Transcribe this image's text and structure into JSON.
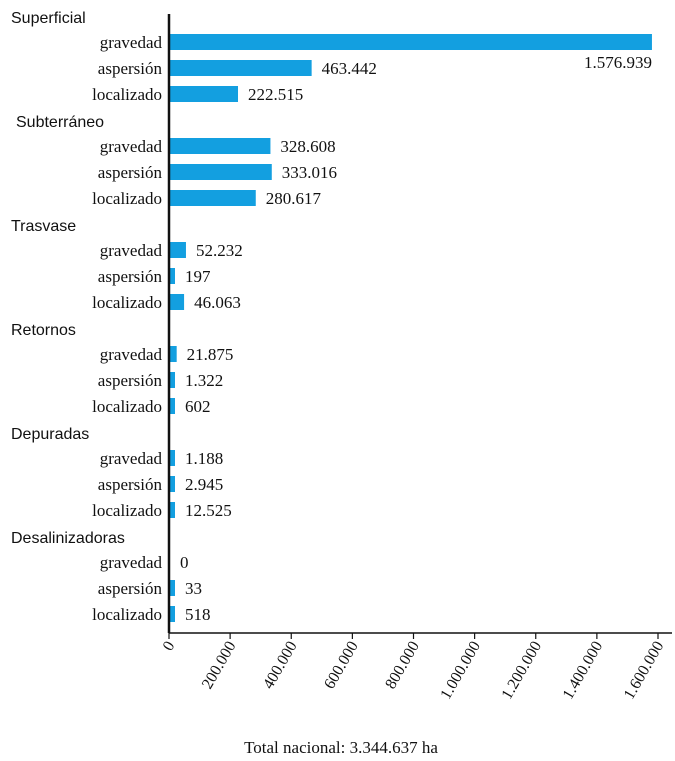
{
  "chart_data": {
    "type": "bar",
    "orientation": "horizontal",
    "bar_color": "#139fe0",
    "axis_color": "#111111",
    "groups": [
      {
        "name": "Superficial",
        "items": [
          {
            "category": "gravedad",
            "value": 1576939,
            "label": "1.576.939"
          },
          {
            "category": "aspersión",
            "value": 463442,
            "label": "463.442"
          },
          {
            "category": "localizado",
            "value": 222515,
            "label": "222.515"
          }
        ]
      },
      {
        "name": "Subterráneo",
        "items": [
          {
            "category": "gravedad",
            "value": 328608,
            "label": "328.608"
          },
          {
            "category": "aspersión",
            "value": 333016,
            "label": "333.016"
          },
          {
            "category": "localizado",
            "value": 280617,
            "label": "280.617"
          }
        ]
      },
      {
        "name": "Trasvase",
        "items": [
          {
            "category": "gravedad",
            "value": 52232,
            "label": "52.232"
          },
          {
            "category": "aspersión",
            "value": 197,
            "label": "197"
          },
          {
            "category": "localizado",
            "value": 46063,
            "label": "46.063"
          }
        ]
      },
      {
        "name": "Retornos",
        "items": [
          {
            "category": "gravedad",
            "value": 21875,
            "label": "21.875"
          },
          {
            "category": "aspersión",
            "value": 1322,
            "label": "1.322"
          },
          {
            "category": "localizado",
            "value": 602,
            "label": "602"
          }
        ]
      },
      {
        "name": "Depuradas",
        "items": [
          {
            "category": "gravedad",
            "value": 1188,
            "label": "1.188"
          },
          {
            "category": "aspersión",
            "value": 2945,
            "label": "2.945"
          },
          {
            "category": "localizado",
            "value": 12525,
            "label": "12.525"
          }
        ]
      },
      {
        "name": "Desalinizadoras",
        "items": [
          {
            "category": "gravedad",
            "value": 0,
            "label": "0"
          },
          {
            "category": "aspersión",
            "value": 33,
            "label": "33"
          },
          {
            "category": "localizado",
            "value": 518,
            "label": "518"
          }
        ]
      }
    ],
    "xlim": [
      0,
      1600000
    ],
    "xticks": [
      0,
      200000,
      400000,
      600000,
      800000,
      1000000,
      1200000,
      1400000,
      1600000
    ],
    "xtick_labels": [
      "0",
      "200.000",
      "400.000",
      "600.000",
      "800.000",
      "1.000.000",
      "1.200.000",
      "1.400.000",
      "1.600.000"
    ],
    "footnote": "Total nacional: 3.344.637 ha",
    "grid": false,
    "legend": "none"
  }
}
